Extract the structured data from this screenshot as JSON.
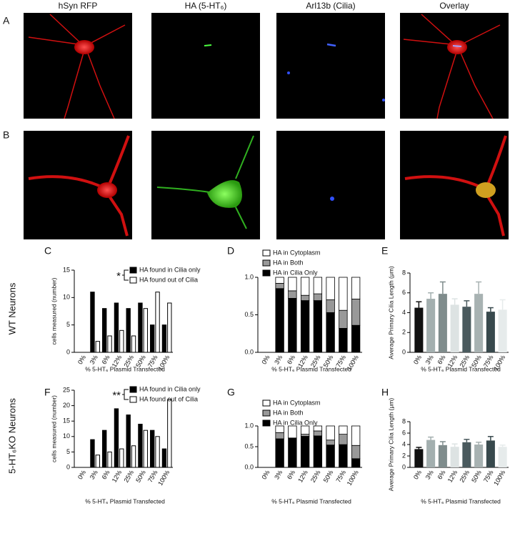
{
  "image_panels": {
    "columns": [
      "hSyn RFP",
      "HA (5-HT₆)",
      "Arl13b (Cilia)",
      "Overlay"
    ],
    "rows": [
      "A",
      "B"
    ]
  },
  "row_labels": [
    "WT Neurons",
    "5-HT₆KO Neurons"
  ],
  "chart_data": [
    {
      "type": "bar",
      "panel_label": "C",
      "ylabel": "cells measured (number)",
      "xlabel": "% 5-HT₆ Plasmid Transfected",
      "annotation": "*",
      "categories": [
        "0%",
        "3%",
        "6%",
        "12%",
        "25%",
        "50%",
        "75%",
        "100%"
      ],
      "series": [
        {
          "name": "HA found in Cilia only",
          "color": "#000000",
          "values": [
            0,
            11,
            8,
            9,
            8,
            9,
            5,
            5
          ]
        },
        {
          "name": "HA found out of Cilia",
          "color": "#ffffff",
          "values": [
            0,
            2,
            3,
            4,
            3,
            8,
            11,
            9
          ]
        }
      ],
      "ylim": [
        0,
        15
      ],
      "yticks": [
        0,
        5,
        10,
        15
      ]
    },
    {
      "type": "stacked_bar",
      "panel_label": "D",
      "xlabel": "% 5-HT₆ Plasmid Transfected",
      "categories": [
        "0%",
        "3%",
        "6%",
        "12%",
        "25%",
        "50%",
        "75%",
        "100%"
      ],
      "series": [
        {
          "name": "HA in Cilia Only",
          "color": "#000000",
          "values": [
            0,
            0.85,
            0.72,
            0.69,
            0.69,
            0.53,
            0.32,
            0.36
          ]
        },
        {
          "name": "HA in Both",
          "color": "#999999",
          "values": [
            0,
            0.07,
            0.1,
            0.07,
            0.09,
            0.17,
            0.24,
            0.35
          ]
        },
        {
          "name": "HA in Cytoplasm",
          "color": "#ffffff",
          "values": [
            0,
            0.08,
            0.18,
            0.24,
            0.22,
            0.3,
            0.44,
            0.29
          ]
        }
      ],
      "ylim": [
        0,
        1
      ],
      "yticks": [
        {
          "value": 0,
          "label": "0.0"
        },
        {
          "value": 0.5,
          "label": "0.5"
        },
        {
          "value": 1,
          "label": "1.0"
        }
      ]
    },
    {
      "type": "error_bar",
      "panel_label": "E",
      "ylabel": "Average Primary Cilia Length (μm)",
      "xlabel": "% 5-HT₆ Plasmid Transfected",
      "categories": [
        "0%",
        "3%",
        "6%",
        "12%",
        "25%",
        "50%",
        "75%",
        "100%"
      ],
      "values": [
        4.5,
        5.4,
        5.9,
        4.8,
        4.6,
        5.9,
        4.1,
        4.3
      ],
      "errors": [
        0.6,
        0.6,
        1.2,
        0.6,
        0.6,
        1.2,
        0.4,
        1.0
      ],
      "colors": [
        "#111111",
        "#a3afaf",
        "#7f8c8c",
        "#dde3e3",
        "#4a5a5e",
        "#a8b2b2",
        "#38494d",
        "#e6ebeb"
      ],
      "ylim": [
        0,
        8
      ],
      "yticks": [
        0,
        2,
        4,
        6,
        8
      ]
    },
    {
      "type": "bar",
      "panel_label": "F",
      "ylabel": "cells measured (number)",
      "xlabel": "% 5-HT₆ Plasmid Transfected",
      "annotation": "**",
      "categories": [
        "0%",
        "3%",
        "6%",
        "12%",
        "25%",
        "50%",
        "75%",
        "100%"
      ],
      "series": [
        {
          "name": "HA found in Cilia only",
          "color": "#000000",
          "values": [
            0,
            9,
            12,
            19,
            17,
            14,
            12,
            6
          ]
        },
        {
          "name": "HA found out of Cilia",
          "color": "#ffffff",
          "values": [
            0,
            4,
            5,
            6,
            7,
            12,
            10,
            22
          ]
        }
      ],
      "ylim": [
        0,
        25
      ],
      "yticks": [
        0,
        5,
        10,
        15,
        20,
        25
      ]
    },
    {
      "type": "stacked_bar",
      "panel_label": "G",
      "xlabel": "% 5-HT₆ Plasmid Transfected",
      "categories": [
        "0%",
        "3%",
        "6%",
        "12%",
        "25%",
        "50%",
        "75%",
        "100%"
      ],
      "series": [
        {
          "name": "HA in Cilia Only",
          "color": "#000000",
          "values": [
            0,
            0.69,
            0.71,
            0.75,
            0.76,
            0.54,
            0.55,
            0.21
          ]
        },
        {
          "name": "HA in Both",
          "color": "#999999",
          "values": [
            0,
            0.15,
            0,
            0.05,
            0.12,
            0.12,
            0.25,
            0.32
          ]
        },
        {
          "name": "HA in Cytoplasm",
          "color": "#ffffff",
          "values": [
            0,
            0.16,
            0.29,
            0.2,
            0.12,
            0.34,
            0.2,
            0.47
          ]
        }
      ],
      "ylim": [
        0,
        1
      ],
      "yticks": [
        {
          "value": 0,
          "label": "0.0"
        },
        {
          "value": 0.5,
          "label": "0.5"
        },
        {
          "value": 1,
          "label": "1.0"
        }
      ]
    },
    {
      "type": "error_bar",
      "panel_label": "H",
      "ylabel": "Average Primary Cilia Length (μm)",
      "xlabel": "% 5-HT₆ Plasmid Transfected",
      "categories": [
        "0%",
        "3%",
        "6%",
        "12%",
        "25%",
        "50%",
        "75%",
        "100%"
      ],
      "values": [
        3.2,
        4.8,
        3.9,
        3.6,
        4.4,
        4.0,
        4.7,
        3.6
      ],
      "errors": [
        0.3,
        0.5,
        0.6,
        0.5,
        0.5,
        0.4,
        0.7,
        0.3
      ],
      "colors": [
        "#111111",
        "#a3afaf",
        "#7f8c8c",
        "#dde3e3",
        "#4a5a5e",
        "#a8b2b2",
        "#38494d",
        "#e6ebeb"
      ],
      "ylim": [
        0,
        8
      ],
      "yticks": [
        0,
        2,
        4,
        6,
        8
      ]
    }
  ]
}
